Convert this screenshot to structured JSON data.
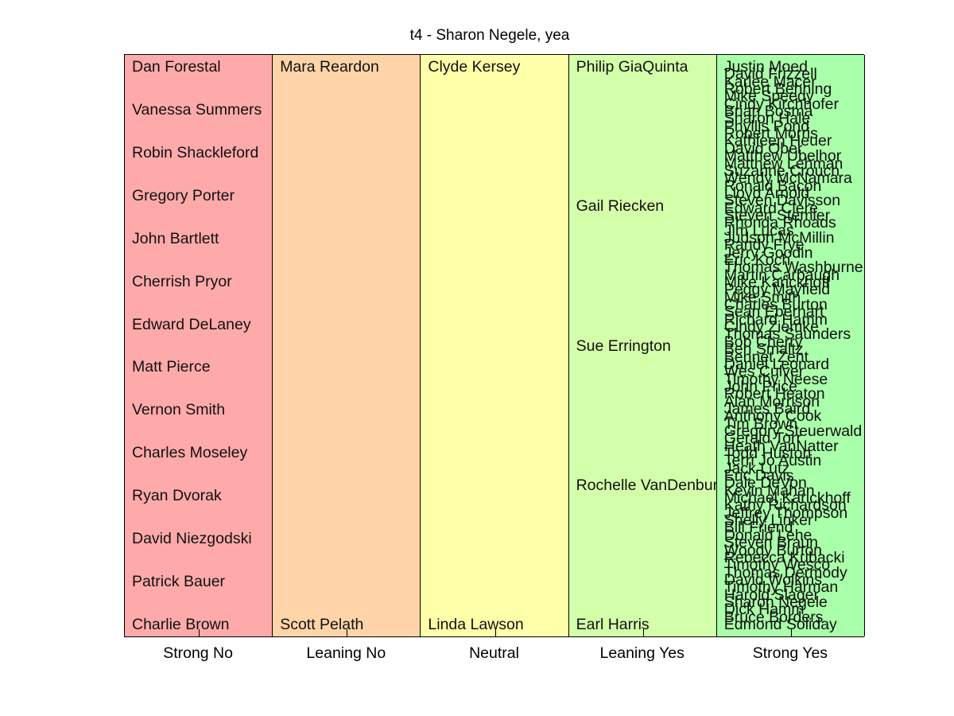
{
  "title": "t4 - Sharon Negele, yea",
  "chart_data": {
    "type": "table",
    "title": "t4 - Sharon Negele, yea",
    "categories": [
      "Strong No",
      "Leaning No",
      "Neutral",
      "Leaning Yes",
      "Strong Yes"
    ],
    "colors": [
      "#ffaaaa",
      "#ffd4a8",
      "#ffffaa",
      "#d4ffaa",
      "#aaffaa"
    ],
    "columns": [
      {
        "category": "Strong No",
        "names": [
          "Dan Forestal",
          "Vanessa Summers",
          "Robin Shackleford",
          "Gregory Porter",
          "John Bartlett",
          "Cherrish Pryor",
          "Edward DeLaney",
          "Matt Pierce",
          "Vernon Smith",
          "Charles Moseley",
          "Ryan Dvorak",
          "David Niezgodski",
          "Patrick Bauer",
          "Charlie Brown"
        ]
      },
      {
        "category": "Leaning No",
        "names": [
          "Mara Reardon",
          "Scott Pelath"
        ]
      },
      {
        "category": "Neutral",
        "names": [
          "Clyde Kersey",
          "Linda Lawson"
        ]
      },
      {
        "category": "Leaning Yes",
        "names": [
          "Philip GiaQuinta",
          "Gail Riecken",
          "Sue Errington",
          "Rochelle VanDenburgh",
          "Earl Harris"
        ]
      },
      {
        "category": "Strong Yes",
        "names": [
          "Justin Moed",
          "David Frizzell",
          "Karlee Macer",
          "Robert Behning",
          "Mike Speedy",
          "Cindy Kirchhofer",
          "Brian Bosma",
          "Sharon Hale",
          "Phyllis Pond",
          "Robert Morris",
          "Kathleen Heuer",
          "David Ober",
          "Matthew Ubelhor",
          "Matthew Lehman",
          "Suzanne Crouch",
          "Wendy McNamara",
          "Ronald Bacon",
          "Lloyd Arnold",
          "Steven Davisson",
          "Edward Clere",
          "Steven Stemler",
          "Rhonda Rhoads",
          "Jim Lucas",
          "Judson McMillin",
          "Randy Frye",
          "Jerry Goodin",
          "Eric Koch",
          "Thomas Washburne",
          "Martin Carbaugh",
          "Mike Karickhoff",
          "Peggy Mayfield",
          "Mike Smith",
          "Charles Burton",
          "Sean Eberhart",
          "Richard Hamm",
          "Cindy Ziemke",
          "Thomas Saunders",
          "Bob Cherry",
          "Ben Smaltz",
          "Bennet Zent",
          "Daniel Leonard",
          "Wes Culver",
          "Timothy Neese",
          "John Price",
          "Robert Heaton",
          "Alan Morrison",
          "James Baird",
          "Anthony Cook",
          "Tim Brown",
          "Gregory Steuerwald",
          "Gerald Torr",
          "Heath VanNatter",
          "Todd Huston",
          "Terri Jo Austin",
          "Jack Lutz",
          "Eric Davis",
          "Dale DeVon",
          "Kevin Mahan",
          "Michael Karickhoff",
          "Kathy Richardson",
          "Jeffrey Thompson",
          "Shelly Linker",
          "Bill Friend",
          "Donald Lehe",
          "Steven Braun",
          "Woody Burton",
          "Rebecca Kubacki",
          "Timothy Wesco",
          "Thomas Dermody",
          "David Wolkins",
          "Timothy Harman",
          "Harold Slager",
          "Sharon Negele",
          "Dick Hamm",
          "Bruce Borders",
          "Edmond Soliday"
        ]
      }
    ]
  }
}
